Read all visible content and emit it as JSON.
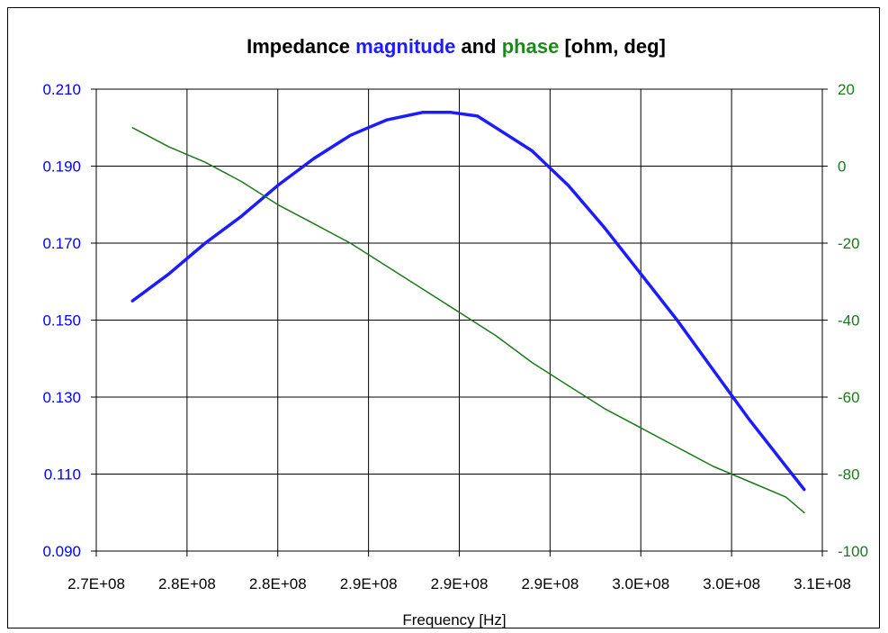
{
  "chart_data": {
    "type": "line",
    "title_parts": [
      {
        "text": "Impedance ",
        "color": "#000000"
      },
      {
        "text": "magnitude",
        "color": "#1c1cff"
      },
      {
        "text": " and ",
        "color": "#000000"
      },
      {
        "text": "phase",
        "color": "#1a8a1a"
      },
      {
        "text": " [ohm, deg]",
        "color": "#000000"
      }
    ],
    "xlabel": "Frequency [Hz]",
    "xlim": [
      270000000,
      310000000
    ],
    "x_tick_values": [
      270000000,
      275000000,
      280000000,
      285000000,
      290000000,
      295000000,
      300000000,
      305000000,
      310000000
    ],
    "x_tick_labels": [
      "2.7E+08",
      "2.8E+08",
      "2.8E+08",
      "2.9E+08",
      "2.9E+08",
      "2.9E+08",
      "3.0E+08",
      "3.0E+08",
      "3.1E+08"
    ],
    "y_left": {
      "lim": [
        0.09,
        0.21
      ],
      "ticks": [
        0.09,
        0.11,
        0.13,
        0.15,
        0.17,
        0.19,
        0.21
      ],
      "tick_labels": [
        "0.090",
        "0.110",
        "0.130",
        "0.150",
        "0.170",
        "0.190",
        "0.210"
      ],
      "color": "#0000ff"
    },
    "y_right": {
      "lim": [
        -100,
        20
      ],
      "ticks": [
        -100,
        -80,
        -60,
        -40,
        -20,
        0,
        20
      ],
      "tick_labels": [
        "-100",
        "-80",
        "-60",
        "-40",
        "-20",
        "0",
        "20"
      ],
      "color": "#1a7a1a"
    },
    "grid": true,
    "series": [
      {
        "axis": "left",
        "color": "#1c1cff",
        "x": [
          272000000,
          274000000,
          276000000,
          278000000,
          280000000,
          282000000,
          284000000,
          285000000,
          286000000,
          288000000,
          289500000,
          291000000,
          292000000,
          294000000,
          296000000,
          298000000,
          300000000,
          302000000,
          304000000,
          306000000,
          308000000,
          309000000
        ],
        "y": [
          0.155,
          0.162,
          0.17,
          0.177,
          0.185,
          0.192,
          0.198,
          0.2,
          0.202,
          0.204,
          0.204,
          0.203,
          0.2,
          0.194,
          0.185,
          0.174,
          0.162,
          0.15,
          0.137,
          0.124,
          0.112,
          0.106
        ]
      },
      {
        "axis": "right",
        "color": "#1a7a1a",
        "x": [
          272000000,
          274000000,
          276000000,
          278000000,
          280000000,
          282000000,
          284000000,
          286000000,
          288000000,
          290000000,
          292000000,
          294000000,
          296000000,
          298000000,
          300000000,
          302000000,
          304000000,
          306000000,
          308000000,
          309000000
        ],
        "y": [
          10,
          5,
          1,
          -4,
          -10,
          -15,
          -20,
          -26,
          -32,
          -38,
          -44,
          -51,
          -57,
          -63,
          -68,
          -73,
          -78,
          -82,
          -86,
          -90
        ]
      }
    ]
  }
}
